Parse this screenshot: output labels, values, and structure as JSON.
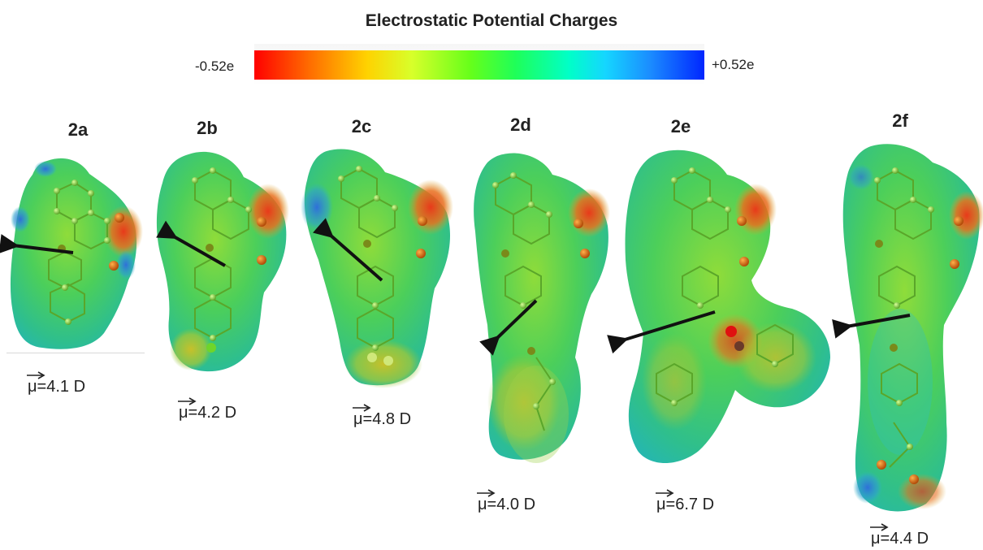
{
  "title": "Electrostatic Potential Charges",
  "color_scale": {
    "min_label": "-0.52e",
    "max_label": "+0.52e",
    "colors": [
      "#ff0000",
      "#ffd200",
      "#1fff58",
      "#00ffc8",
      "#0026ff"
    ]
  },
  "molecules": [
    {
      "id": "2a",
      "label": "2a",
      "dipole_text": "=4.1 D",
      "dipole_symbol": "μ"
    },
    {
      "id": "2b",
      "label": "2b",
      "dipole_text": "=4.2 D",
      "dipole_symbol": "μ"
    },
    {
      "id": "2c",
      "label": "2c",
      "dipole_text": "=4.8 D",
      "dipole_symbol": "μ"
    },
    {
      "id": "2d",
      "label": "2d",
      "dipole_text": "=4.0 D",
      "dipole_symbol": "μ"
    },
    {
      "id": "2e",
      "label": "2e",
      "dipole_text": "=6.7 D",
      "dipole_symbol": "μ"
    },
    {
      "id": "2f",
      "label": "2f",
      "dipole_text": "=4.4 D",
      "dipole_symbol": "μ"
    }
  ]
}
